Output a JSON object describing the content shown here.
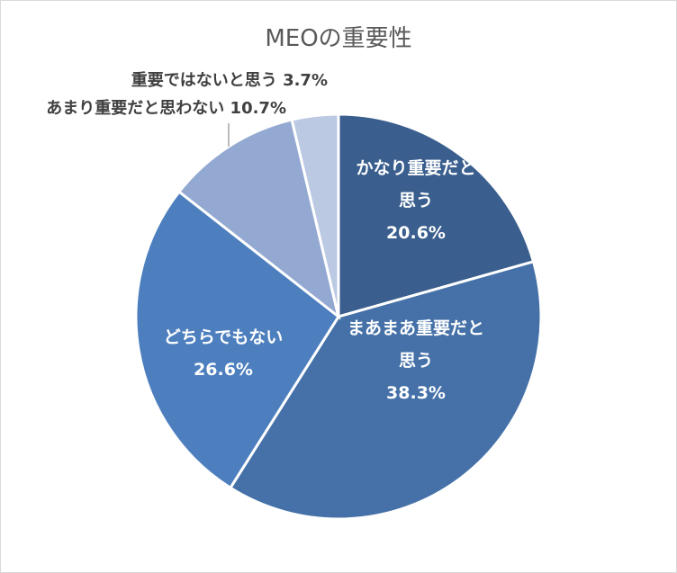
{
  "chart_data": {
    "type": "pie",
    "title": "MEOの重要性",
    "slices": [
      {
        "label_lines": [
          "かなり重要だと",
          "思う"
        ],
        "value": 20.6,
        "value_label": "20.6%",
        "color": "#3a5e8e",
        "label_position": "inside"
      },
      {
        "label_lines": [
          "まあまあ重要だと",
          "思う"
        ],
        "value": 38.3,
        "value_label": "38.3%",
        "color": "#4571a8",
        "label_position": "inside"
      },
      {
        "label_lines": [
          "どちらでもない"
        ],
        "value": 26.6,
        "value_label": "26.6%",
        "color": "#4d7fbf",
        "label_position": "inside"
      },
      {
        "label_lines": [
          "あまり重要だと思わない"
        ],
        "value": 10.7,
        "value_label": "10.7%",
        "color": "#93a9d1",
        "label_position": "outside"
      },
      {
        "label_lines": [
          "重要ではないと思う"
        ],
        "value": 3.7,
        "value_label": "3.7%",
        "color": "#bcc9e3",
        "label_position": "outside"
      }
    ]
  }
}
